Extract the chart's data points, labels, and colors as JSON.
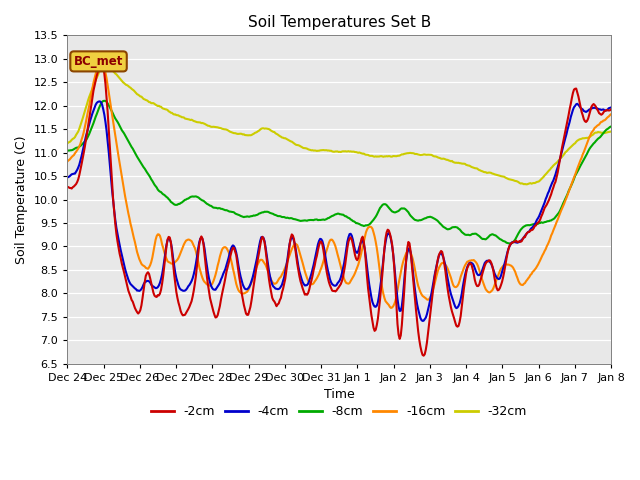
{
  "title": "Soil Temperatures Set B",
  "xlabel": "Time",
  "ylabel": "Soil Temperature (C)",
  "ylim": [
    6.5,
    13.5
  ],
  "yticks": [
    6.5,
    7.0,
    7.5,
    8.0,
    8.5,
    9.0,
    9.5,
    10.0,
    10.5,
    11.0,
    11.5,
    12.0,
    12.5,
    13.0,
    13.5
  ],
  "xtick_labels": [
    "Dec 24",
    "Dec 25",
    "Dec 26",
    "Dec 27",
    "Dec 28",
    "Dec 29",
    "Dec 30",
    "Dec 31",
    "Jan 1",
    "Jan 2",
    "Jan 3",
    "Jan 4",
    "Jan 5",
    "Jan 6",
    "Jan 7",
    "Jan 8"
  ],
  "colors": {
    "-2cm": "#cc0000",
    "-4cm": "#0000cc",
    "-8cm": "#00aa00",
    "-16cm": "#ff8800",
    "-32cm": "#cccc00"
  },
  "legend_label": "BC_met",
  "bg_color": "#e8e8e8",
  "line_width": 1.5
}
